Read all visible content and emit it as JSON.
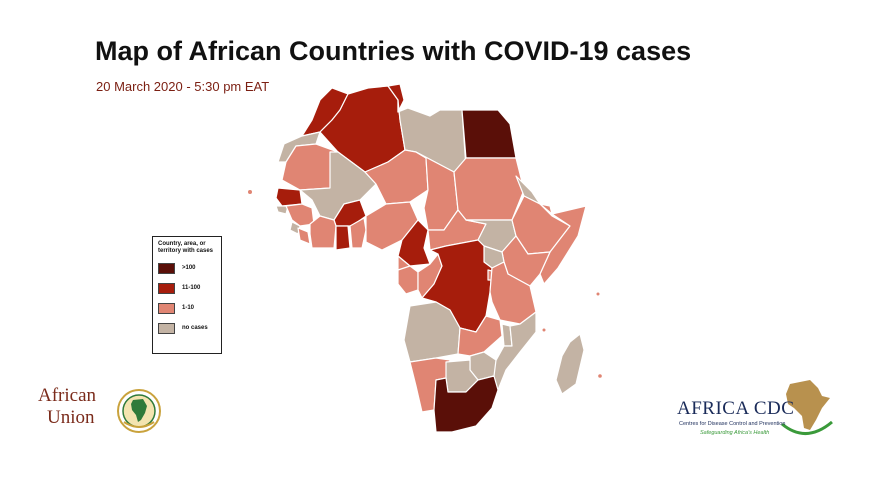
{
  "title": "Map of African Countries with COVID-19 cases",
  "subtitle": "20 March 2020 - 5:30 pm EAT",
  "legend": {
    "title_line1": "Country, area, or",
    "title_line2": "territory with cases",
    "items": [
      {
        "label": ">100",
        "color": "#5a0f08"
      },
      {
        "label": "11-100",
        "color": "#a61d0c"
      },
      {
        "label": "1-10",
        "color": "#e08573"
      },
      {
        "label": "no cases",
        "color": "#c3b3a4"
      }
    ]
  },
  "colors": {
    "gt100": "#5a0f08",
    "c11_100": "#a61d0c",
    "c1_10": "#e08573",
    "none": "#c3b3a4",
    "border": "#ffffff"
  },
  "logos": {
    "african_union_line1": "African",
    "african_union_line2": "Union",
    "africa_cdc_name": "AFRICA CDC",
    "africa_cdc_subtitle": "Centres for Disease Control and Prevention",
    "africa_cdc_tagline": "Safeguarding Africa's Health"
  }
}
